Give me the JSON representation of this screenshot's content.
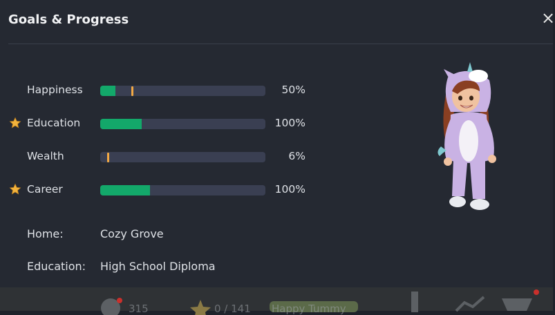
{
  "header": {
    "title": "Goals & Progress",
    "close_label": "×"
  },
  "goals": [
    {
      "label": "Happiness",
      "percent_text": "50%",
      "fill_fraction": 0.09,
      "marker_fraction": 0.19,
      "starred": false
    },
    {
      "label": "Education",
      "percent_text": "100%",
      "fill_fraction": 0.25,
      "marker_fraction": null,
      "starred": true
    },
    {
      "label": "Wealth",
      "percent_text": "6%",
      "fill_fraction": 0.0,
      "marker_fraction": 0.04,
      "starred": false
    },
    {
      "label": "Career",
      "percent_text": "100%",
      "fill_fraction": 0.3,
      "marker_fraction": null,
      "starred": true
    }
  ],
  "info": {
    "home_label": "Home:",
    "home_value": "Cozy Grove",
    "education_label": "Education:",
    "education_value": "High School Diploma"
  },
  "hud": {
    "coins": "315",
    "stars": "0 / 141",
    "mood": "Happy Tummy"
  },
  "colors": {
    "panel": "#252932",
    "track": "#3a3f52",
    "fill": "#13a86a",
    "marker": "#f3a944",
    "star": "#f2b33d"
  },
  "icons": {
    "star": "star-icon",
    "close": "close-icon",
    "character": "unicorn-costume-character"
  }
}
